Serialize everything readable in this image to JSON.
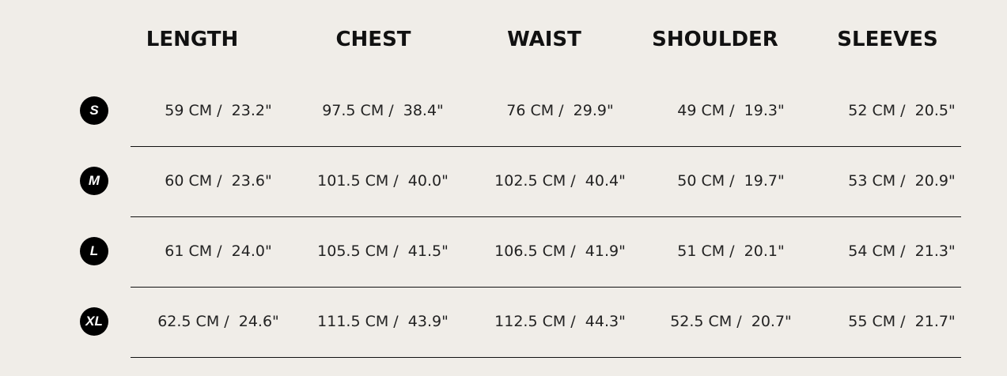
{
  "headers": [
    "LENGTH",
    "CHEST",
    "WAIST",
    "SHOULDER",
    "SLEEVES"
  ],
  "rows": [
    {
      "size": "S",
      "values": [
        "59 CM /  23.2\"",
        "97.5 CM /  38.4\"",
        "76 CM /  29.9\"",
        "49 CM /  19.3\"",
        "52 CM /  20.5\""
      ]
    },
    {
      "size": "M",
      "values": [
        "60 CM /  23.6\"",
        "101.5 CM /  40.0\"",
        "102.5 CM /  40.4\"",
        "50 CM /  19.7\"",
        "53 CM /  20.9\""
      ]
    },
    {
      "size": "L",
      "values": [
        "61 CM /  24.0\"",
        "105.5 CM /  41.5\"",
        "106.5 CM /  41.9\"",
        "51 CM /  20.1\"",
        "54 CM /  21.3\""
      ]
    },
    {
      "size": "XL",
      "values": [
        "62.5 CM /  24.6\"",
        "111.5 CM /  43.9\"",
        "112.5 CM /  44.3\"",
        "52.5 CM /  20.7\"",
        "55 CM /  21.7\""
      ]
    }
  ],
  "colors": {
    "background": "#f0ede8",
    "badge": "#000000",
    "text": "#222222"
  }
}
